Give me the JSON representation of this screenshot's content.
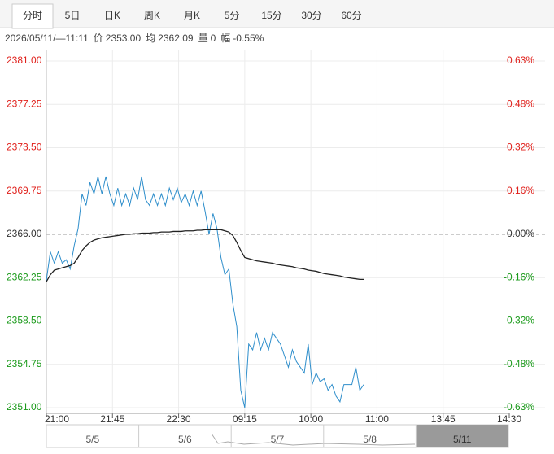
{
  "tabs": [
    "分时",
    "5日",
    "日K",
    "周K",
    "月K",
    "5分",
    "15分",
    "30分",
    "60分"
  ],
  "info": {
    "datetime": "2026/05/11/—11:11",
    "price_label": "价",
    "price": "2353.00",
    "avg_label": "均",
    "avg": "2362.09",
    "vol_label": "量",
    "vol": "0",
    "range_label": "幅",
    "range": "-0.55%"
  },
  "chart_data": {
    "type": "line",
    "x": [
      0,
      3,
      6,
      9,
      12,
      15,
      18,
      21,
      24,
      27,
      30,
      33,
      36,
      39,
      42,
      45,
      48,
      51,
      54,
      57,
      60,
      63,
      66,
      69,
      72,
      75,
      78,
      81,
      84,
      87,
      90,
      93,
      96,
      99,
      102,
      105,
      108,
      111,
      114,
      117,
      120,
      123,
      126,
      129,
      132,
      135,
      138,
      141,
      144,
      147,
      150,
      153,
      156,
      159,
      162,
      165,
      168,
      171,
      174,
      177,
      180,
      183,
      186,
      189,
      192,
      195,
      198,
      201,
      204,
      207,
      210,
      213,
      216,
      219,
      222,
      225,
      228,
      231,
      234,
      237,
      240
    ],
    "series": [
      {
        "color": "#2e8ecb",
        "values": [
          2362.0,
          2364.5,
          2363.5,
          2364.5,
          2363.5,
          2363.8,
          2363.0,
          2365.0,
          2366.5,
          2369.5,
          2368.5,
          2370.5,
          2369.5,
          2371.0,
          2369.5,
          2371.0,
          2369.5,
          2368.5,
          2370.0,
          2368.5,
          2369.5,
          2368.5,
          2370.0,
          2369.0,
          2371.0,
          2369.0,
          2368.5,
          2369.5,
          2368.5,
          2369.5,
          2368.5,
          2370.0,
          2369.0,
          2370.0,
          2368.75,
          2369.5,
          2368.5,
          2369.75,
          2368.5,
          2369.75,
          2368.0,
          2366.0,
          2367.8,
          2366.5,
          2364.0,
          2362.5,
          2363.0,
          2360.0,
          2358.0,
          2352.5,
          2351.0,
          2356.5,
          2356.0,
          2357.5,
          2356.0,
          2357.0,
          2356.0,
          2357.5,
          2357.0,
          2356.5,
          2355.5,
          2354.5,
          2356.0,
          2355.0,
          2354.5,
          2354.0,
          2356.5,
          2353.0,
          2354.0,
          2353.25,
          2353.5,
          2352.5,
          2353.0,
          2352.0,
          2351.5,
          2353.0,
          2353.0,
          2353.0,
          2354.5,
          2352.5,
          2353.0
        ]
      },
      {
        "color": "#222222",
        "values": [
          2361.9,
          2362.5,
          2362.9,
          2363.0,
          2363.1,
          2363.2,
          2363.3,
          2363.5,
          2364.0,
          2364.6,
          2365.0,
          2365.3,
          2365.5,
          2365.6,
          2365.7,
          2365.75,
          2365.8,
          2365.85,
          2365.9,
          2365.95,
          2366.0,
          2366.0,
          2366.05,
          2366.05,
          2366.1,
          2366.1,
          2366.1,
          2366.15,
          2366.15,
          2366.2,
          2366.2,
          2366.2,
          2366.25,
          2366.25,
          2366.25,
          2366.3,
          2366.3,
          2366.3,
          2366.35,
          2366.35,
          2366.4,
          2366.4,
          2366.4,
          2366.4,
          2366.4,
          2366.3,
          2366.2,
          2365.9,
          2365.3,
          2364.6,
          2364.0,
          2363.9,
          2363.8,
          2363.7,
          2363.65,
          2363.6,
          2363.55,
          2363.5,
          2363.4,
          2363.35,
          2363.3,
          2363.25,
          2363.2,
          2363.1,
          2363.05,
          2363.0,
          2362.9,
          2362.85,
          2362.8,
          2362.7,
          2362.6,
          2362.55,
          2362.5,
          2362.45,
          2362.4,
          2362.3,
          2362.25,
          2362.2,
          2362.15,
          2362.1,
          2362.1
        ]
      }
    ],
    "xlim": [
      0,
      350
    ],
    "xticks": [
      {
        "value": 0,
        "label": "21:00"
      },
      {
        "value": 50,
        "label": "21:45"
      },
      {
        "value": 100,
        "label": "22:30"
      },
      {
        "value": 150,
        "label": "09:15"
      },
      {
        "value": 200,
        "label": "10:00"
      },
      {
        "value": 250,
        "label": "11:00"
      },
      {
        "value": 300,
        "label": "13:45"
      },
      {
        "value": 350,
        "label": "14:30"
      }
    ],
    "ylim": [
      2351,
      2381
    ],
    "yticks": [
      {
        "value": 2381,
        "label": "2381.00"
      },
      {
        "value": 2377.25,
        "label": "2377.25"
      },
      {
        "value": 2373.5,
        "label": "2373.50"
      },
      {
        "value": 2369.75,
        "label": "2369.75"
      },
      {
        "value": 2366,
        "label": "2366.00"
      },
      {
        "value": 2362.25,
        "label": "2362.25"
      },
      {
        "value": 2358.5,
        "label": "2358.50"
      },
      {
        "value": 2354.75,
        "label": "2354.75"
      },
      {
        "value": 2351,
        "label": "2351.00"
      }
    ],
    "y2lim": [
      -0.634,
      0.634
    ],
    "y2ticks": [
      {
        "value": 0.634,
        "label": "0.63%"
      },
      {
        "value": 0.4755,
        "label": "0.48%"
      },
      {
        "value": 0.317,
        "label": "0.32%"
      },
      {
        "value": 0.1585,
        "label": "0.16%"
      },
      {
        "value": 0,
        "label": "0.00%"
      },
      {
        "value": -0.1585,
        "label": "-0.16%"
      },
      {
        "value": -0.317,
        "label": "-0.32%"
      },
      {
        "value": -0.4755,
        "label": "-0.48%"
      },
      {
        "value": -0.634,
        "label": "-0.63%"
      }
    ],
    "ref_line": 2366,
    "grid": true,
    "up_color": "#e0201b",
    "down_color": "#1a9a1a",
    "flat_color": "#333333"
  },
  "navigator": {
    "labels": [
      "5/5",
      "5/6",
      "5/7",
      "5/8",
      "5/11"
    ],
    "selected": 4
  }
}
